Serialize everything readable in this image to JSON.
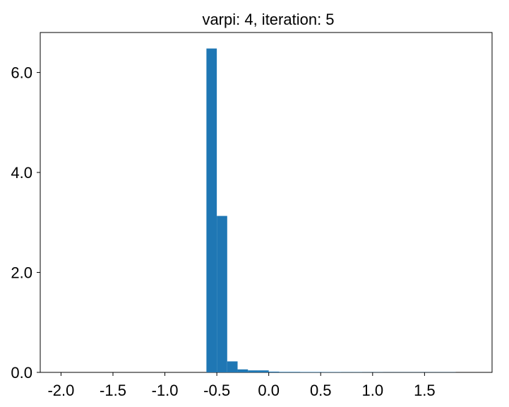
{
  "chart_data": {
    "type": "bar",
    "title": "varpi: 4, iteration: 5",
    "xlabel": "",
    "ylabel": "",
    "xlim": [
      -2.2,
      2.15
    ],
    "ylim": [
      0,
      6.8
    ],
    "grid": false,
    "bar_color": "#1f77b4",
    "bin_width": 0.1,
    "bins": [
      {
        "x_left": -0.6,
        "value": 6.48
      },
      {
        "x_left": -0.5,
        "value": 3.13
      },
      {
        "x_left": -0.4,
        "value": 0.22
      },
      {
        "x_left": -0.3,
        "value": 0.06
      },
      {
        "x_left": -0.2,
        "value": 0.04
      },
      {
        "x_left": -0.1,
        "value": 0.04
      },
      {
        "x_left": 0.0,
        "value": 0.015
      },
      {
        "x_left": 0.1,
        "value": 0.01
      },
      {
        "x_left": 0.2,
        "value": 0.01
      },
      {
        "x_left": 0.3,
        "value": 0.008
      },
      {
        "x_left": 0.4,
        "value": 0.008
      },
      {
        "x_left": 0.5,
        "value": 0.006
      },
      {
        "x_left": 0.6,
        "value": 0.006
      },
      {
        "x_left": 0.7,
        "value": 0.005
      },
      {
        "x_left": 0.8,
        "value": 0.005
      },
      {
        "x_left": 0.9,
        "value": 0.004
      },
      {
        "x_left": 1.0,
        "value": 0.004
      },
      {
        "x_left": 1.1,
        "value": 0.003
      },
      {
        "x_left": 1.2,
        "value": 0.003
      },
      {
        "x_left": 1.3,
        "value": 0.003
      },
      {
        "x_left": 1.4,
        "value": 0.003
      },
      {
        "x_left": 1.5,
        "value": 0.003
      },
      {
        "x_left": 1.6,
        "value": 0.003
      },
      {
        "x_left": 1.7,
        "value": 0.003
      }
    ],
    "x_ticks": [
      {
        "value": -2.0,
        "label": "-2.0"
      },
      {
        "value": -1.5,
        "label": "-1.5"
      },
      {
        "value": -1.0,
        "label": "-1.0"
      },
      {
        "value": -0.5,
        "label": "-0.5"
      },
      {
        "value": 0.0,
        "label": "0.0"
      },
      {
        "value": 0.5,
        "label": "0.5"
      },
      {
        "value": 1.0,
        "label": "1.0"
      },
      {
        "value": 1.5,
        "label": "1.5"
      }
    ],
    "y_ticks": [
      {
        "value": 0.0,
        "label": "0.0"
      },
      {
        "value": 2.0,
        "label": "2.0"
      },
      {
        "value": 4.0,
        "label": "4.0"
      },
      {
        "value": 6.0,
        "label": "6.0"
      }
    ]
  }
}
